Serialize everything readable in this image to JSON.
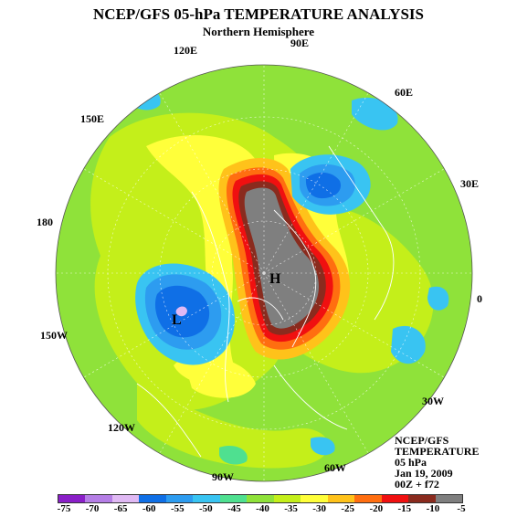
{
  "title": "NCEP/GFS 05-hPa TEMPERATURE ANALYSIS",
  "subtitle": "Northern Hemisphere",
  "longitude_labels": [
    "90E",
    "60E",
    "30E",
    "0",
    "30W",
    "60W",
    "90W",
    "120W",
    "150W",
    "180",
    "150E",
    "120E"
  ],
  "centers": {
    "high": "H",
    "low": "L"
  },
  "info": {
    "line1": "NCEP/GFS",
    "line2": "TEMPERATURE",
    "line3": "05 hPa",
    "line4": "Jan 19, 2009",
    "line5": "00Z + f72"
  },
  "colorbar": {
    "ticks": [
      "-75",
      "-70",
      "-65",
      "-60",
      "-55",
      "-50",
      "-45",
      "-40",
      "-35",
      "-30",
      "-25",
      "-20",
      "-15",
      "-10",
      "-5"
    ],
    "colors": [
      "#8a1fc8",
      "#b57ee6",
      "#e0b9f4",
      "#0f6fe6",
      "#2d9cf0",
      "#39c4f2",
      "#4fe090",
      "#8fe23a",
      "#c4ef1a",
      "#ffff3a",
      "#ffc21a",
      "#ff6e10",
      "#f01010",
      "#8a2b1e",
      "#7f7f7f"
    ]
  },
  "palette": {
    "greenish": "#8fe23a",
    "yellowgreen": "#c4ef1a",
    "yellow": "#ffff3a",
    "orange": "#ffc21a",
    "orangered": "#ff6e10",
    "red": "#f01010",
    "brown": "#8a2b1e",
    "gray": "#7f7f7f",
    "lightblue": "#39c4f2",
    "midblue": "#2d9cf0",
    "deepblue": "#0f6fe6",
    "lavender": "#e0b9f4",
    "seagreen": "#4fe090"
  }
}
